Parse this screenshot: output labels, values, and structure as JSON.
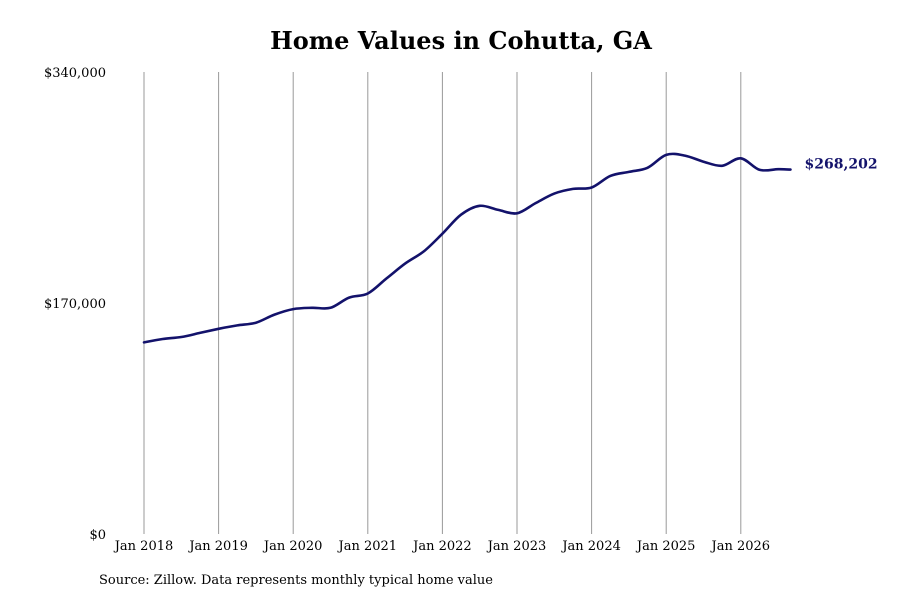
{
  "chart_data": {
    "type": "line",
    "title": "Home Values in Cohutta, GA",
    "xlabel": "",
    "ylabel": "",
    "y_tick_labels": [
      "$0",
      "$170,000",
      "$340,000"
    ],
    "x_tick_labels": [
      "Jan 2018",
      "Jan 2019",
      "Jan 2020",
      "Jan 2021",
      "Jan 2022",
      "Jan 2023",
      "Jan 2024",
      "Jan 2025",
      "Jan 2026"
    ],
    "ylim": [
      0,
      340000
    ],
    "xlim": [
      "2018-01",
      "2026-09"
    ],
    "grid": "vertical lines at each January",
    "line_color": "#13126b",
    "end_label": "$268,202",
    "series": [
      {
        "x": [
          "2018-01",
          "2018-04",
          "2018-07",
          "2018-10",
          "2019-01",
          "2019-04",
          "2019-07",
          "2019-10",
          "2020-01",
          "2020-04",
          "2020-07",
          "2020-10",
          "2021-01",
          "2021-04",
          "2021-07",
          "2021-10",
          "2022-01",
          "2022-04",
          "2022-07",
          "2022-10",
          "2023-01",
          "2023-04",
          "2023-07",
          "2023-10",
          "2024-01",
          "2024-04",
          "2024-07",
          "2024-10",
          "2025-01",
          "2025-04",
          "2025-07",
          "2025-10",
          "2026-01",
          "2026-04",
          "2026-07",
          "2026-09"
        ],
        "y": [
          141000,
          143500,
          145000,
          148000,
          151000,
          153500,
          155500,
          161500,
          165500,
          166500,
          166500,
          174000,
          177000,
          188000,
          199000,
          208000,
          221000,
          235000,
          241500,
          238500,
          236000,
          243500,
          250500,
          254000,
          255000,
          263500,
          266500,
          269500,
          279000,
          278500,
          274000,
          271000,
          276500,
          268000,
          268500,
          268202
        ]
      }
    ]
  },
  "source_note": "Source: Zillow. Data represents monthly typical home value"
}
